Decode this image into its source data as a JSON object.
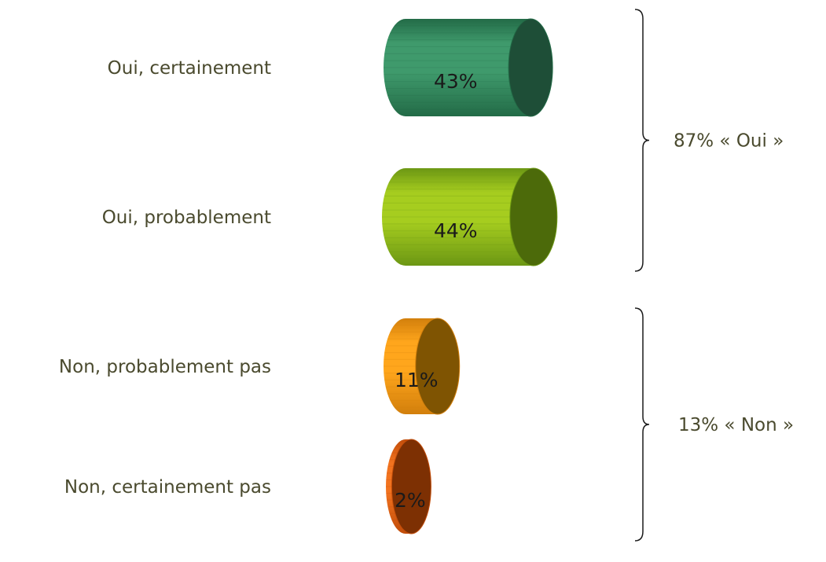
{
  "chart_data": {
    "type": "bar",
    "orientation": "horizontal",
    "style": "3d-cylinder",
    "categories": [
      "Oui, certainement",
      "Oui, probablement",
      "Non, probablement pas",
      "Non, certainement pas"
    ],
    "values": [
      43,
      44,
      11,
      2
    ],
    "value_labels": [
      "43%",
      "44%",
      "11%",
      "2%"
    ],
    "colors": [
      {
        "body_light": "#3f9a6c",
        "body_dark": "#236b47",
        "cap": "#1e4e37"
      },
      {
        "body_light": "#a6cd1f",
        "body_dark": "#6c9714",
        "cap": "#4c6a0a"
      },
      {
        "body_light": "#ffa61c",
        "body_dark": "#d27f0c",
        "cap": "#7f5402"
      },
      {
        "body_light": "#f2731f",
        "body_dark": "#c24d0a",
        "cap": "#7d3003"
      }
    ],
    "groups": [
      {
        "label": "87% « Oui »",
        "members": [
          0,
          1
        ]
      },
      {
        "label": "13% « Non »",
        "members": [
          2,
          3
        ]
      }
    ],
    "title": "",
    "xlabel": "",
    "ylabel": "",
    "category_label_color": "#4a4a2e",
    "value_label_color": "#1a1a1a",
    "group_label_color": "#4a4a2e",
    "grid": false,
    "legend": false
  }
}
